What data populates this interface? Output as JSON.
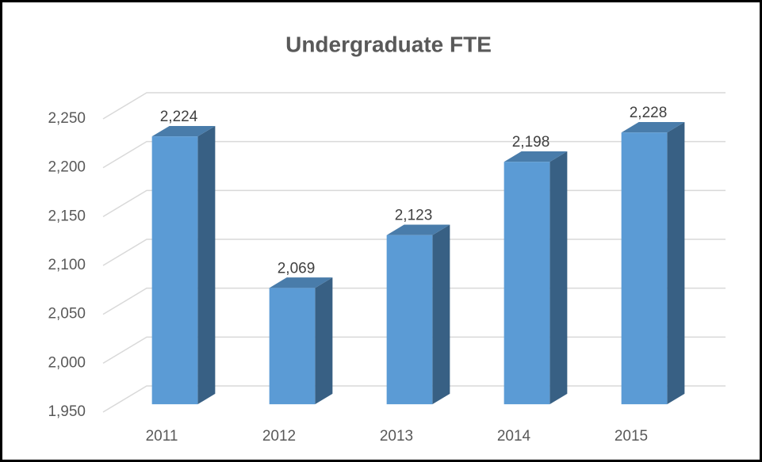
{
  "chart_data": {
    "type": "bar3d",
    "title": "Undergraduate FTE",
    "categories": [
      "2011",
      "2012",
      "2013",
      "2014",
      "2015"
    ],
    "values": [
      2224,
      2069,
      2123,
      2198,
      2228
    ],
    "value_labels": [
      "2,224",
      "2,069",
      "2,123",
      "2,198",
      "2,228"
    ],
    "color": "#5b9bd5",
    "ylim": [
      1950,
      2250
    ],
    "yticks": [
      {
        "value": 1950,
        "label": "1,950"
      },
      {
        "value": 2000,
        "label": "2,000"
      },
      {
        "value": 2050,
        "label": "2,050"
      },
      {
        "value": 2100,
        "label": "2,100"
      },
      {
        "value": 2150,
        "label": "2,150"
      },
      {
        "value": 2200,
        "label": "2,200"
      },
      {
        "value": 2250,
        "label": "2,250"
      }
    ],
    "grid": true
  }
}
